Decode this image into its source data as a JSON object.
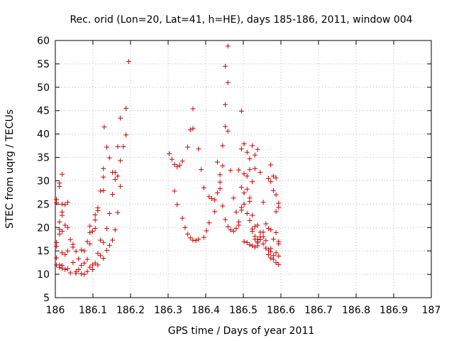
{
  "chart_data": {
    "type": "scatter",
    "title": "Rec. orid (Lon=20, Lat=41, h=HE), days 185-186, 2011, window 004",
    "xlabel": "GPS time / Days of year 2011",
    "ylabel": "STEC from uqrg / TECUs",
    "xlim": [
      186,
      187
    ],
    "ylim": [
      5,
      60
    ],
    "x_ticks": [
      "186",
      "186.1",
      "186.2",
      "186.3",
      "186.4",
      "186.5",
      "186.6",
      "186.7",
      "186.8",
      "186.9",
      "187"
    ],
    "y_ticks": [
      "5",
      "10",
      "15",
      "20",
      "25",
      "30",
      "35",
      "40",
      "45",
      "50",
      "55",
      "60"
    ],
    "x_tick_values": [
      186,
      186.1,
      186.2,
      186.3,
      186.4,
      186.5,
      186.6,
      186.7,
      186.8,
      186.9,
      187
    ],
    "y_tick_values": [
      5,
      10,
      15,
      20,
      25,
      30,
      35,
      40,
      45,
      50,
      55,
      60
    ],
    "grid": true,
    "marker": "plus",
    "series": [
      {
        "color": "#cc0000",
        "points": [
          [
            186.003,
            26.0
          ],
          [
            186.003,
            25.3
          ],
          [
            186.003,
            16.8
          ],
          [
            186.003,
            16.0
          ],
          [
            186.003,
            13.5
          ],
          [
            186.003,
            12.0
          ],
          [
            186.011,
            29.5
          ],
          [
            186.011,
            28.8
          ],
          [
            186.011,
            21.2
          ],
          [
            186.011,
            19.6
          ],
          [
            186.011,
            18.6
          ],
          [
            186.011,
            12.0
          ],
          [
            186.011,
            11.5
          ],
          [
            186.018,
            31.4
          ],
          [
            186.018,
            25.0
          ],
          [
            186.018,
            23.3
          ],
          [
            186.018,
            22.6
          ],
          [
            186.018,
            19.2
          ],
          [
            186.018,
            14.6
          ],
          [
            186.018,
            11.9
          ],
          [
            186.018,
            11.3
          ],
          [
            186.026,
            24.9
          ],
          [
            186.026,
            20.5
          ],
          [
            186.026,
            14.2
          ],
          [
            186.026,
            11.0
          ],
          [
            186.033,
            25.4
          ],
          [
            186.033,
            20.0
          ],
          [
            186.033,
            15.0
          ],
          [
            186.033,
            11.2
          ],
          [
            186.04,
            17.4
          ],
          [
            186.04,
            10.3
          ],
          [
            186.047,
            16.4
          ],
          [
            186.047,
            15.8
          ],
          [
            186.047,
            12.5
          ],
          [
            186.055,
            14.9
          ],
          [
            186.055,
            10.6
          ],
          [
            186.055,
            10.2
          ],
          [
            186.062,
            13.3
          ],
          [
            186.062,
            11.0
          ],
          [
            186.069,
            15.2
          ],
          [
            186.069,
            11.9
          ],
          [
            186.069,
            10.1
          ],
          [
            186.077,
            15.0
          ],
          [
            186.077,
            12.4
          ],
          [
            186.077,
            10.0
          ],
          [
            186.085,
            17.0
          ],
          [
            186.085,
            13.2
          ],
          [
            186.085,
            10.6
          ],
          [
            186.092,
            20.3
          ],
          [
            186.092,
            18.9
          ],
          [
            186.092,
            16.5
          ],
          [
            186.092,
            11.5
          ],
          [
            186.099,
            19.2
          ],
          [
            186.099,
            11.0
          ],
          [
            186.099,
            12.0
          ],
          [
            186.106,
            22.7
          ],
          [
            186.106,
            21.6
          ],
          [
            186.106,
            19.8
          ],
          [
            186.106,
            12.4
          ],
          [
            186.113,
            24.2
          ],
          [
            186.113,
            23.6
          ],
          [
            186.113,
            14.5
          ],
          [
            186.113,
            12.0
          ],
          [
            186.12,
            27.8
          ],
          [
            186.12,
            17.3
          ],
          [
            186.12,
            14.0
          ],
          [
            186.128,
            32.6
          ],
          [
            186.128,
            30.8
          ],
          [
            186.128,
            27.9
          ],
          [
            186.128,
            16.8
          ],
          [
            186.128,
            13.4
          ],
          [
            186.13,
            41.5
          ],
          [
            186.137,
            37.2
          ],
          [
            186.137,
            19.8
          ],
          [
            186.137,
            15.1
          ],
          [
            186.144,
            34.9
          ],
          [
            186.144,
            23.0
          ],
          [
            186.144,
            16.2
          ],
          [
            186.152,
            31.8
          ],
          [
            186.152,
            27.1
          ],
          [
            186.152,
            17.3
          ],
          [
            186.159,
            31.8
          ],
          [
            186.159,
            30.3
          ],
          [
            186.159,
            19.5
          ],
          [
            186.166,
            37.3
          ],
          [
            186.166,
            31.0
          ],
          [
            186.166,
            23.2
          ],
          [
            186.173,
            34.3
          ],
          [
            186.173,
            28.8
          ],
          [
            186.173,
            43.4
          ],
          [
            186.181,
            37.3
          ],
          [
            186.188,
            45.5
          ],
          [
            186.188,
            39.8
          ],
          [
            186.195,
            55.5
          ],
          [
            186.303,
            35.8
          ],
          [
            186.31,
            34.6
          ],
          [
            186.317,
            33.5
          ],
          [
            186.317,
            27.8
          ],
          [
            186.324,
            33.0
          ],
          [
            186.324,
            24.9
          ],
          [
            186.331,
            33.3
          ],
          [
            186.338,
            34.2
          ],
          [
            186.338,
            22.0
          ],
          [
            186.345,
            20.0
          ],
          [
            186.352,
            37.2
          ],
          [
            186.352,
            18.6
          ],
          [
            186.359,
            40.9
          ],
          [
            186.359,
            17.8
          ],
          [
            186.366,
            41.2
          ],
          [
            186.366,
            45.4
          ],
          [
            186.366,
            17.3
          ],
          [
            186.374,
            17.2
          ],
          [
            186.381,
            36.8
          ],
          [
            186.381,
            17.5
          ],
          [
            186.388,
            32.4
          ],
          [
            186.395,
            28.5
          ],
          [
            186.395,
            17.9
          ],
          [
            186.402,
            19.3
          ],
          [
            186.409,
            26.6
          ],
          [
            186.409,
            21.0
          ],
          [
            186.416,
            26.2
          ],
          [
            186.424,
            25.9
          ],
          [
            186.424,
            23.4
          ],
          [
            186.431,
            27.4
          ],
          [
            186.431,
            34.0
          ],
          [
            186.438,
            29.7
          ],
          [
            186.438,
            28.3
          ],
          [
            186.438,
            31.3
          ],
          [
            186.445,
            33.2
          ],
          [
            186.445,
            37.5
          ],
          [
            186.445,
            24.6
          ],
          [
            186.452,
            41.6
          ],
          [
            186.452,
            46.3
          ],
          [
            186.452,
            54.5
          ],
          [
            186.452,
            21.7
          ],
          [
            186.459,
            58.8
          ],
          [
            186.459,
            51.0
          ],
          [
            186.459,
            40.6
          ],
          [
            186.459,
            20.2
          ],
          [
            186.466,
            32.2
          ],
          [
            186.466,
            19.5
          ],
          [
            186.474,
            26.3
          ],
          [
            186.474,
            19.2
          ],
          [
            186.481,
            23.3
          ],
          [
            186.481,
            19.8
          ],
          [
            186.488,
            32.3
          ],
          [
            186.488,
            21.2
          ],
          [
            186.488,
            20.5
          ],
          [
            186.495,
            44.9
          ],
          [
            186.495,
            36.8
          ],
          [
            186.495,
            28.6
          ],
          [
            186.495,
            24.3
          ],
          [
            186.495,
            23.7
          ],
          [
            186.502,
            37.9
          ],
          [
            186.502,
            31.5
          ],
          [
            186.502,
            27.4
          ],
          [
            186.502,
            25.0
          ],
          [
            186.502,
            17.0
          ],
          [
            186.51,
            36.1
          ],
          [
            186.51,
            31.0
          ],
          [
            186.51,
            28.2
          ],
          [
            186.51,
            23.0
          ],
          [
            186.51,
            16.8
          ],
          [
            186.517,
            34.7
          ],
          [
            186.517,
            32.4
          ],
          [
            186.517,
            26.3
          ],
          [
            186.517,
            25.6
          ],
          [
            186.517,
            21.5
          ],
          [
            186.517,
            16.3
          ],
          [
            186.524,
            37.5
          ],
          [
            186.524,
            29.8
          ],
          [
            186.524,
            22.6
          ],
          [
            186.524,
            19.7
          ],
          [
            186.524,
            19.2
          ],
          [
            186.524,
            16.1
          ],
          [
            186.531,
            35.5
          ],
          [
            186.531,
            32.6
          ],
          [
            186.531,
            20.2
          ],
          [
            186.531,
            18.1
          ],
          [
            186.531,
            17.5
          ],
          [
            186.531,
            15.8
          ],
          [
            186.538,
            36.7
          ],
          [
            186.538,
            20.5
          ],
          [
            186.538,
            17.5
          ],
          [
            186.538,
            17.0
          ],
          [
            186.538,
            16.7
          ],
          [
            186.538,
            16.1
          ],
          [
            186.545,
            31.8
          ],
          [
            186.545,
            19.0
          ],
          [
            186.545,
            18.0
          ],
          [
            186.545,
            17.4
          ],
          [
            186.553,
            25.4
          ],
          [
            186.553,
            19.0
          ],
          [
            186.553,
            18.0
          ],
          [
            186.553,
            16.5
          ],
          [
            186.56,
            20.8
          ],
          [
            186.56,
            17.2
          ],
          [
            186.56,
            15.6
          ],
          [
            186.567,
            30.5
          ],
          [
            186.567,
            19.8
          ],
          [
            186.567,
            15.2
          ],
          [
            186.567,
            14.2
          ],
          [
            186.573,
            33.4
          ],
          [
            186.573,
            29.8
          ],
          [
            186.573,
            19.5
          ],
          [
            186.573,
            15.5
          ],
          [
            186.573,
            14.8
          ],
          [
            186.573,
            13.5
          ],
          [
            186.58,
            31.0
          ],
          [
            186.58,
            27.9
          ],
          [
            186.58,
            17.5
          ],
          [
            186.58,
            14.0
          ],
          [
            186.58,
            13.2
          ],
          [
            186.587,
            30.6
          ],
          [
            186.587,
            27.0
          ],
          [
            186.587,
            23.4
          ],
          [
            186.587,
            18.9
          ],
          [
            186.587,
            14.6
          ],
          [
            186.587,
            12.5
          ],
          [
            186.594,
            25.2
          ],
          [
            186.594,
            24.3
          ],
          [
            186.594,
            17.0
          ],
          [
            186.594,
            16.5
          ],
          [
            186.594,
            13.9
          ],
          [
            186.594,
            12.1
          ]
        ]
      }
    ]
  }
}
